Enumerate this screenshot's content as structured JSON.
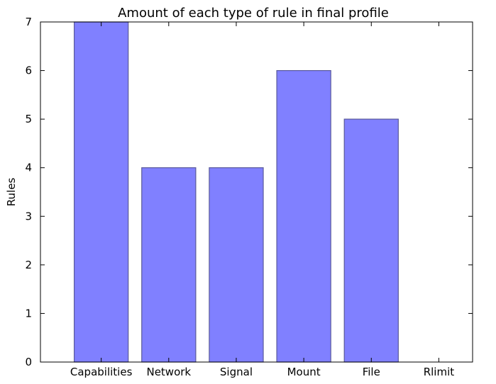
{
  "chart_data": {
    "type": "bar",
    "title": "Amount of each type of rule in final profile",
    "xlabel": "",
    "ylabel": "Rules",
    "categories": [
      "Capabilities",
      "Network",
      "Signal",
      "Mount",
      "File",
      "Rlimit"
    ],
    "values": [
      7,
      4,
      4,
      6,
      5,
      0
    ],
    "ylim": [
      0,
      7
    ],
    "yticks": [
      0,
      1,
      2,
      3,
      4,
      5,
      6,
      7
    ],
    "grid": false,
    "legend": "none",
    "bar_color": "#8080ff",
    "bar_edge_color": "#5a5a9a"
  }
}
